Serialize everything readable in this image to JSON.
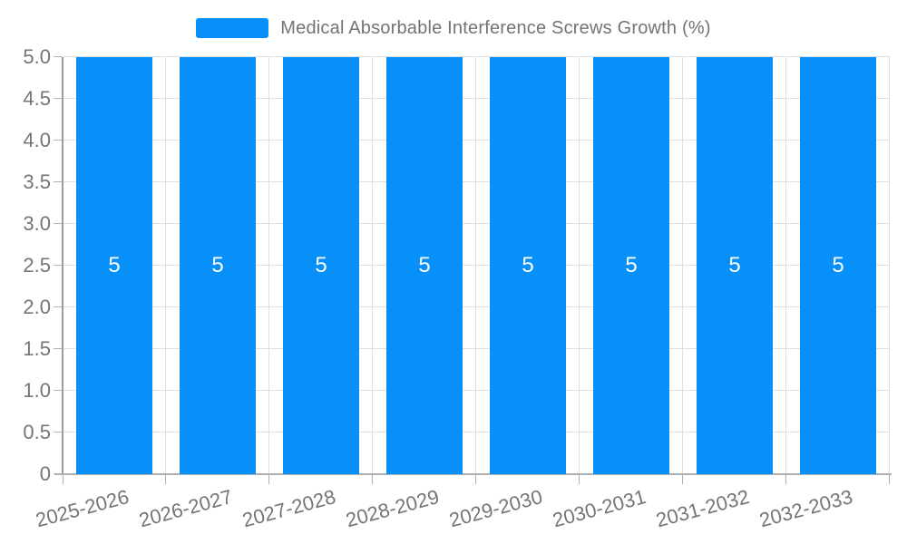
{
  "legend": {
    "label": "Medical Absorbable Interference Screws Growth (%)",
    "swatch_color": "#0890fa"
  },
  "colors": {
    "bar": "#0890fa",
    "bar_label": "#ffffff",
    "grid": "#e0e0e0",
    "x_axis_line": "#b0b0b0",
    "y_axis_line": "#999999",
    "tick_label": "#757575",
    "title_text": "#737373",
    "background": "#ffffff"
  },
  "chart_data": {
    "type": "bar",
    "title": "Medical Absorbable Interference Screws Growth (%)",
    "categories": [
      "2025-2026",
      "2026-2027",
      "2027-2028",
      "2028-2029",
      "2029-2030",
      "2030-2031",
      "2031-2032",
      "2032-2033"
    ],
    "values": [
      5,
      5,
      5,
      5,
      5,
      5,
      5,
      5
    ],
    "bar_labels": [
      "5",
      "5",
      "5",
      "5",
      "5",
      "5",
      "5",
      "5"
    ],
    "xlabel": "",
    "ylabel": "",
    "ylim": [
      0,
      5
    ],
    "ytick_labels": [
      "0",
      "0.5",
      "1.0",
      "1.5",
      "2.0",
      "2.5",
      "3.0",
      "3.5",
      "4.0",
      "4.5",
      "5.0"
    ],
    "grid": true,
    "legend_position": "top",
    "x_label_rotation_deg": -15
  }
}
